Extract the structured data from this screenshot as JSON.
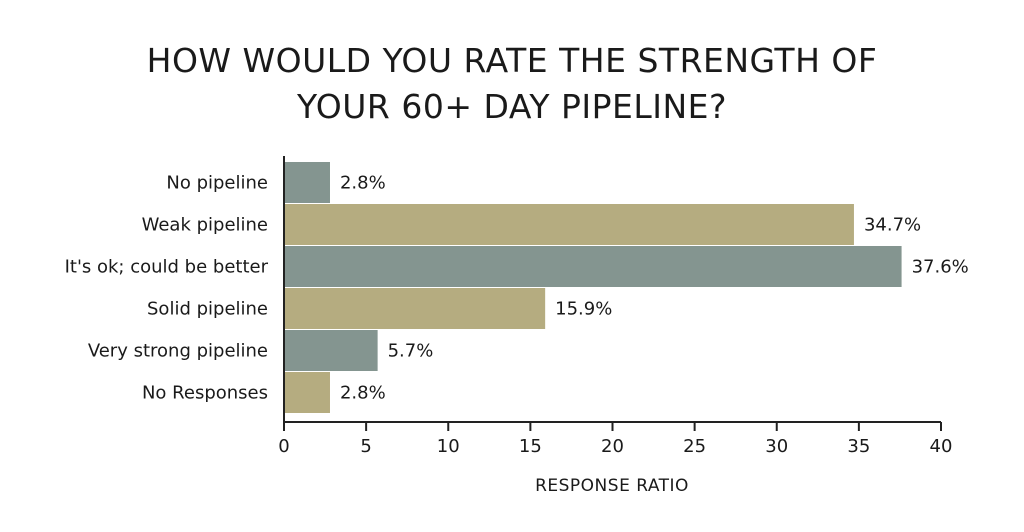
{
  "chart_data": {
    "type": "bar",
    "orientation": "horizontal",
    "title_lines": [
      "HOW WOULD YOU RATE THE STRENGTH OF",
      "YOUR 60+ DAY PIPELINE?"
    ],
    "xlabel": "RESPONSE RATIO",
    "ylabel": "",
    "categories": [
      "No pipeline",
      "Weak pipeline",
      "It's ok; could be better",
      "Solid pipeline",
      "Very strong pipeline",
      "No Responses"
    ],
    "values": [
      2.8,
      34.7,
      37.6,
      15.9,
      5.7,
      2.8
    ],
    "value_labels": [
      "2.8%",
      "34.7%",
      "37.6%",
      "15.9%",
      "5.7%",
      "2.8%"
    ],
    "xlim": [
      0,
      40
    ],
    "xticks": [
      "0",
      "5",
      "10",
      "15",
      "20",
      "25",
      "30",
      "35",
      "40"
    ],
    "grid": false,
    "colors": {
      "bar_a": "#849590",
      "bar_b": "#b5ac80",
      "axis": "#222222"
    }
  }
}
